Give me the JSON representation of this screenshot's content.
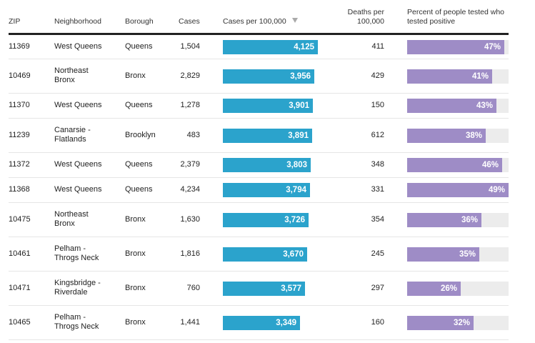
{
  "colors": {
    "cases_bar": "#2ba3cc",
    "positive_bar": "#9e8cc6",
    "track": "#ececec"
  },
  "header": {
    "zip": "ZIP",
    "neighborhood": "Neighborhood",
    "borough": "Borough",
    "cases": "Cases",
    "cases_per": "Cases per 100,000",
    "deaths_per_1": "Deaths per",
    "deaths_per_2": "100,000",
    "pct_1": "Percent of people tested who",
    "pct_2": "tested positive",
    "sort_icon": "sort-descending-triangle"
  },
  "chart_data": {
    "type": "table",
    "title": "",
    "columns": [
      "ZIP",
      "Neighborhood",
      "Borough",
      "Cases",
      "Cases per 100,000",
      "Deaths per 100,000",
      "Percent of people tested who tested positive"
    ],
    "sorted_by": "Cases per 100,000",
    "sort_order": "descending",
    "cases_per_max": 4125,
    "pct_max": 49,
    "rows": [
      {
        "zip": "11369",
        "n1": "West Queens",
        "n2": "",
        "borough": "Queens",
        "cases": "1,504",
        "cpk": 4125,
        "cpk_label": "4,125",
        "deaths": "411",
        "pct": 47,
        "pct_label": "47%"
      },
      {
        "zip": "10469",
        "n1": "Northeast",
        "n2": "Bronx",
        "borough": "Bronx",
        "cases": "2,829",
        "cpk": 3956,
        "cpk_label": "3,956",
        "deaths": "429",
        "pct": 41,
        "pct_label": "41%"
      },
      {
        "zip": "11370",
        "n1": "West Queens",
        "n2": "",
        "borough": "Queens",
        "cases": "1,278",
        "cpk": 3901,
        "cpk_label": "3,901",
        "deaths": "150",
        "pct": 43,
        "pct_label": "43%"
      },
      {
        "zip": "11239",
        "n1": "Canarsie -",
        "n2": "Flatlands",
        "borough": "Brooklyn",
        "cases": "483",
        "cpk": 3891,
        "cpk_label": "3,891",
        "deaths": "612",
        "pct": 38,
        "pct_label": "38%"
      },
      {
        "zip": "11372",
        "n1": "West Queens",
        "n2": "",
        "borough": "Queens",
        "cases": "2,379",
        "cpk": 3803,
        "cpk_label": "3,803",
        "deaths": "348",
        "pct": 46,
        "pct_label": "46%"
      },
      {
        "zip": "11368",
        "n1": "West Queens",
        "n2": "",
        "borough": "Queens",
        "cases": "4,234",
        "cpk": 3794,
        "cpk_label": "3,794",
        "deaths": "331",
        "pct": 49,
        "pct_label": "49%"
      },
      {
        "zip": "10475",
        "n1": "Northeast",
        "n2": "Bronx",
        "borough": "Bronx",
        "cases": "1,630",
        "cpk": 3726,
        "cpk_label": "3,726",
        "deaths": "354",
        "pct": 36,
        "pct_label": "36%"
      },
      {
        "zip": "10461",
        "n1": "Pelham -",
        "n2": "Throgs Neck",
        "borough": "Bronx",
        "cases": "1,816",
        "cpk": 3670,
        "cpk_label": "3,670",
        "deaths": "245",
        "pct": 35,
        "pct_label": "35%"
      },
      {
        "zip": "10471",
        "n1": "Kingsbridge -",
        "n2": "Riverdale",
        "borough": "Bronx",
        "cases": "760",
        "cpk": 3577,
        "cpk_label": "3,577",
        "deaths": "297",
        "pct": 26,
        "pct_label": "26%"
      },
      {
        "zip": "10465",
        "n1": "Pelham -",
        "n2": "Throgs Neck",
        "borough": "Bronx",
        "cases": "1,441",
        "cpk": 3349,
        "cpk_label": "3,349",
        "deaths": "160",
        "pct": 32,
        "pct_label": "32%"
      }
    ]
  }
}
